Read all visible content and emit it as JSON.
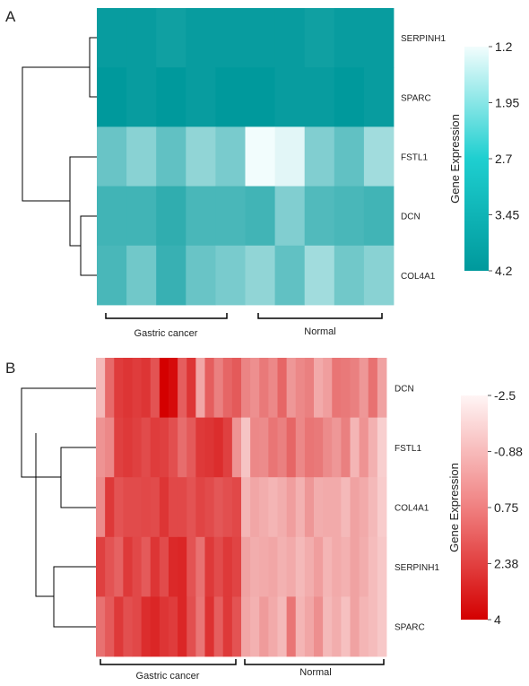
{
  "figure": {
    "panels": [
      {
        "letter": "A",
        "legend_title": "Gene Expression",
        "colorbar_ticks": [
          "1.2",
          "1.95",
          "2.7",
          "3.45",
          "4.2"
        ],
        "colors": {
          "low": "#f2fdfd",
          "high": "#00999c"
        },
        "groups": [
          "Gastric cancer",
          "Normal"
        ]
      },
      {
        "letter": "B",
        "legend_title": "Gene Expression",
        "colorbar_ticks": [
          "-2.5",
          "-0.88",
          "0.75",
          "2.38",
          "4"
        ],
        "colors": {
          "low": "#fff5f5",
          "high": "#d40000"
        },
        "groups": [
          "Gastric cancer",
          "Normal"
        ]
      }
    ]
  },
  "chart_data": [
    {
      "type": "heatmap",
      "title": "",
      "colorbar_label": "Gene Expression",
      "value_range": [
        1.2,
        4.2
      ],
      "rows": [
        "SERPINH1",
        "SPARC",
        "FSTL1",
        "DCN",
        "COL4A1"
      ],
      "column_groups": [
        {
          "name": "Gastric cancer",
          "count": 5
        },
        {
          "name": "Normal",
          "count": 5
        }
      ],
      "values": [
        [
          4.1,
          4.1,
          4.0,
          4.1,
          4.1,
          4.1,
          4.1,
          4.0,
          4.1,
          4.1
        ],
        [
          4.2,
          4.1,
          4.2,
          4.1,
          4.2,
          4.2,
          4.1,
          4.1,
          4.2,
          4.1
        ],
        [
          2.9,
          2.5,
          3.0,
          2.4,
          2.7,
          1.2,
          1.4,
          2.6,
          3.0,
          2.2
        ],
        [
          3.4,
          3.4,
          3.6,
          3.3,
          3.3,
          3.4,
          2.6,
          3.2,
          3.3,
          3.4
        ],
        [
          3.3,
          2.8,
          3.5,
          2.9,
          2.7,
          2.4,
          3.0,
          2.2,
          2.8,
          2.5
        ]
      ]
    },
    {
      "type": "heatmap",
      "title": "",
      "colorbar_label": "Gene Expression",
      "value_range": [
        -2.5,
        4
      ],
      "rows": [
        "DCN",
        "FSTL1",
        "COL4A1",
        "SERPINH1",
        "SPARC"
      ],
      "column_groups": [
        {
          "name": "Gastric cancer",
          "count": 16
        },
        {
          "name": "Normal",
          "count": 16
        }
      ],
      "values": [
        [
          -0.9,
          1.2,
          2.4,
          2.6,
          2.4,
          2.6,
          1.8,
          4.0,
          3.7,
          1.5,
          2.6,
          -0.4,
          1.5,
          0.6,
          1.3,
          1.6,
          0.5,
          0.2,
          0.8,
          0.4,
          1.3,
          0.0,
          0.4,
          0.6,
          -0.5,
          -0.2,
          0.9,
          0.8,
          0.6,
          0.0,
          1.0,
          -0.3
        ],
        [
          0.1,
          0.4,
          2.3,
          2.5,
          2.3,
          2.0,
          2.4,
          2.3,
          1.9,
          1.1,
          1.6,
          2.5,
          2.6,
          2.8,
          2.3,
          0.1,
          -1.2,
          0.4,
          0.3,
          0.9,
          0.6,
          1.3,
          0.4,
          0.9,
          0.8,
          0.3,
          0.0,
          0.6,
          -0.8,
          0.1,
          -0.7,
          -1.5
        ],
        [
          0.3,
          2.5,
          1.8,
          2.0,
          2.0,
          2.1,
          2.0,
          2.6,
          2.1,
          2.1,
          1.8,
          2.2,
          2.0,
          1.7,
          1.9,
          2.1,
          -0.8,
          -0.4,
          -0.6,
          -0.8,
          -0.6,
          -0.2,
          -0.7,
          0.0,
          -0.6,
          -0.5,
          -0.5,
          -0.9,
          -0.3,
          -0.5,
          -0.9,
          -1.4
        ],
        [
          2.3,
          1.8,
          1.4,
          2.5,
          2.1,
          1.6,
          2.6,
          2.0,
          2.9,
          3.0,
          1.8,
          1.0,
          2.5,
          2.0,
          2.5,
          2.2,
          -0.3,
          -0.6,
          -0.5,
          -0.4,
          -0.7,
          -0.5,
          -0.9,
          -0.6,
          -0.2,
          -0.8,
          -0.5,
          -0.7,
          -0.3,
          -0.6,
          -1.0,
          -1.3
        ],
        [
          1.0,
          1.6,
          2.5,
          1.9,
          2.1,
          2.8,
          3.0,
          2.6,
          2.4,
          3.0,
          1.9,
          0.9,
          2.7,
          1.5,
          2.5,
          1.8,
          -0.4,
          -0.7,
          -0.1,
          -0.5,
          -0.9,
          0.9,
          -0.8,
          -0.4,
          0.2,
          -0.9,
          -0.6,
          -1.1,
          -0.3,
          -0.8,
          -1.0,
          -1.3
        ]
      ]
    }
  ]
}
